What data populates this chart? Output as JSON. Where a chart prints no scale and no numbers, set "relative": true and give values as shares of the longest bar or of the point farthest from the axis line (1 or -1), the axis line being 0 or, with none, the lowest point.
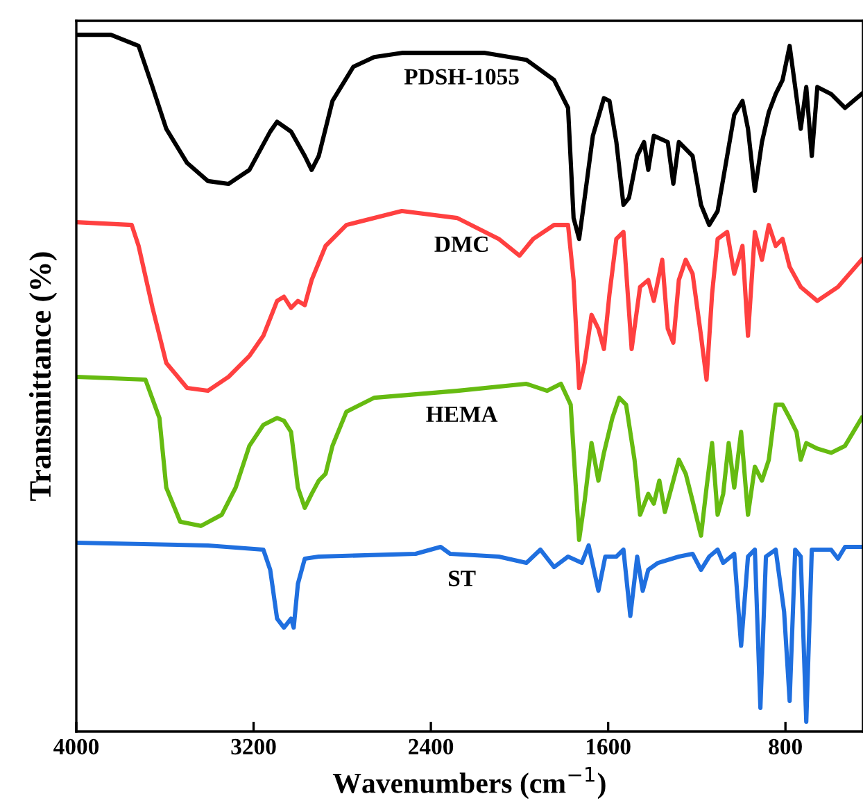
{
  "chart_data": {
    "type": "line",
    "relative": true,
    "xlabel": "Wavenumbers (cm$^{−1}$)",
    "ylabel": "Transmittance (%)",
    "xlim": [
      4000,
      450
    ],
    "xticks": [
      4000,
      3200,
      2400,
      1600,
      800
    ],
    "tick_labels": "x",
    "grid": false,
    "legend": false,
    "marker": "none",
    "line_style": "solid",
    "series": [
      {
        "name": "PDSH-1055",
        "color": "#000000",
        "x": [
          4000,
          3844,
          3719,
          3656,
          3594,
          3500,
          3406,
          3313,
          3219,
          3125,
          3094,
          3031,
          2969,
          2938,
          2906,
          2844,
          2750,
          2656,
          2531,
          2344,
          2156,
          1969,
          1844,
          1781,
          1756,
          1731,
          1706,
          1669,
          1619,
          1594,
          1563,
          1531,
          1506,
          1469,
          1438,
          1419,
          1394,
          1331,
          1306,
          1281,
          1219,
          1181,
          1144,
          1106,
          1063,
          1031,
          994,
          969,
          938,
          906,
          875,
          844,
          813,
          781,
          756,
          731,
          706,
          681,
          656,
          594,
          531,
          456
        ],
        "values": [
          1.0,
          1.0,
          0.984,
          0.925,
          0.865,
          0.816,
          0.79,
          0.786,
          0.806,
          0.861,
          0.875,
          0.861,
          0.826,
          0.806,
          0.826,
          0.905,
          0.954,
          0.968,
          0.974,
          0.974,
          0.974,
          0.964,
          0.935,
          0.895,
          0.737,
          0.707,
          0.766,
          0.855,
          0.909,
          0.905,
          0.846,
          0.756,
          0.766,
          0.826,
          0.846,
          0.806,
          0.855,
          0.846,
          0.786,
          0.846,
          0.826,
          0.756,
          0.727,
          0.747,
          0.826,
          0.885,
          0.905,
          0.865,
          0.776,
          0.846,
          0.889,
          0.915,
          0.935,
          0.984,
          0.925,
          0.865,
          0.925,
          0.826,
          0.925,
          0.915,
          0.895,
          0.915
        ]
      },
      {
        "name": "DMC",
        "color": "#ff4040",
        "x": [
          4000,
          3750,
          3719,
          3656,
          3594,
          3500,
          3406,
          3313,
          3219,
          3156,
          3094,
          3063,
          3031,
          3000,
          2969,
          2938,
          2875,
          2781,
          2531,
          2281,
          2094,
          2000,
          1938,
          1844,
          1781,
          1756,
          1731,
          1706,
          1675,
          1644,
          1619,
          1594,
          1563,
          1531,
          1494,
          1456,
          1419,
          1394,
          1356,
          1331,
          1306,
          1281,
          1250,
          1219,
          1181,
          1156,
          1131,
          1106,
          1063,
          1031,
          994,
          969,
          938,
          906,
          875,
          844,
          813,
          781,
          731,
          656,
          563,
          456
        ],
        "values": [
          0.731,
          0.727,
          0.697,
          0.608,
          0.529,
          0.493,
          0.489,
          0.509,
          0.539,
          0.568,
          0.618,
          0.624,
          0.608,
          0.618,
          0.612,
          0.648,
          0.697,
          0.727,
          0.747,
          0.737,
          0.707,
          0.683,
          0.707,
          0.727,
          0.727,
          0.648,
          0.493,
          0.529,
          0.598,
          0.578,
          0.549,
          0.628,
          0.707,
          0.717,
          0.549,
          0.638,
          0.648,
          0.618,
          0.677,
          0.578,
          0.558,
          0.648,
          0.677,
          0.657,
          0.568,
          0.505,
          0.628,
          0.707,
          0.717,
          0.657,
          0.697,
          0.568,
          0.717,
          0.677,
          0.727,
          0.697,
          0.707,
          0.667,
          0.638,
          0.618,
          0.638,
          0.677
        ]
      },
      {
        "name": "HEMA",
        "color": "#66bb11",
        "x": [
          4000,
          3688,
          3625,
          3594,
          3531,
          3438,
          3344,
          3281,
          3219,
          3156,
          3094,
          3063,
          3031,
          3000,
          2969,
          2938,
          2906,
          2875,
          2844,
          2781,
          2656,
          2281,
          1969,
          1875,
          1813,
          1769,
          1731,
          1706,
          1675,
          1644,
          1619,
          1581,
          1550,
          1519,
          1481,
          1456,
          1419,
          1394,
          1369,
          1344,
          1306,
          1281,
          1250,
          1219,
          1181,
          1156,
          1131,
          1106,
          1081,
          1056,
          1031,
          1000,
          969,
          938,
          906,
          875,
          844,
          813,
          781,
          750,
          731,
          706,
          656,
          594,
          531,
          456
        ],
        "values": [
          0.509,
          0.505,
          0.45,
          0.35,
          0.301,
          0.295,
          0.311,
          0.35,
          0.41,
          0.44,
          0.45,
          0.446,
          0.43,
          0.35,
          0.321,
          0.341,
          0.36,
          0.37,
          0.41,
          0.459,
          0.479,
          0.489,
          0.499,
          0.489,
          0.499,
          0.469,
          0.275,
          0.331,
          0.414,
          0.36,
          0.4,
          0.45,
          0.479,
          0.469,
          0.39,
          0.311,
          0.341,
          0.327,
          0.36,
          0.315,
          0.36,
          0.39,
          0.37,
          0.331,
          0.281,
          0.35,
          0.414,
          0.311,
          0.341,
          0.414,
          0.35,
          0.43,
          0.311,
          0.38,
          0.36,
          0.39,
          0.469,
          0.469,
          0.45,
          0.43,
          0.39,
          0.414,
          0.406,
          0.4,
          0.41,
          0.45
        ]
      },
      {
        "name": "ST",
        "color": "#1f6fdf",
        "x": [
          4000,
          3406,
          3156,
          3125,
          3094,
          3063,
          3031,
          3019,
          3000,
          2969,
          2906,
          2469,
          2356,
          2313,
          2094,
          1969,
          1906,
          1844,
          1781,
          1719,
          1688,
          1644,
          1613,
          1563,
          1531,
          1500,
          1469,
          1444,
          1419,
          1375,
          1281,
          1219,
          1181,
          1144,
          1106,
          1081,
          1031,
          1000,
          969,
          938,
          913,
          888,
          844,
          806,
          781,
          756,
          731,
          706,
          681,
          594,
          563,
          531,
          456
        ],
        "values": [
          0.271,
          0.267,
          0.261,
          0.232,
          0.162,
          0.149,
          0.162,
          0.149,
          0.212,
          0.248,
          0.251,
          0.255,
          0.265,
          0.255,
          0.251,
          0.242,
          0.261,
          0.236,
          0.251,
          0.242,
          0.267,
          0.202,
          0.251,
          0.251,
          0.261,
          0.166,
          0.251,
          0.202,
          0.232,
          0.242,
          0.251,
          0.255,
          0.232,
          0.251,
          0.261,
          0.242,
          0.255,
          0.123,
          0.251,
          0.261,
          0.034,
          0.251,
          0.261,
          0.172,
          0.044,
          0.261,
          0.251,
          0.014,
          0.261,
          0.261,
          0.248,
          0.265,
          0.265
        ]
      }
    ]
  }
}
